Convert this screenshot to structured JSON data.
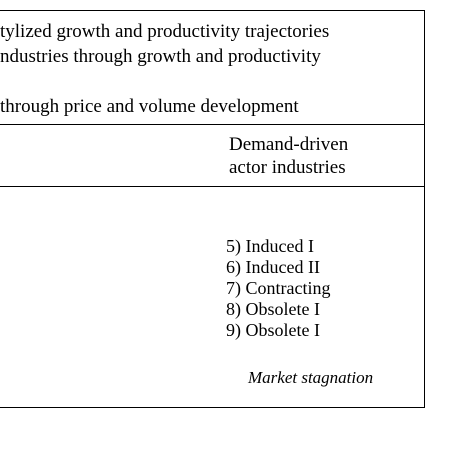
{
  "header": {
    "line1": "tylized growth and productivity trajectories",
    "line2": "ndustries through growth and productivity",
    "line3": " through price and volume development"
  },
  "column": {
    "heading_line1": "Demand-driven",
    "heading_line2": "actor industries"
  },
  "trajectories": [
    "5) Induced I",
    "6) Induced II",
    "7) Contracting",
    "8) Obsolete I",
    "9) Obsolete I"
  ],
  "footer_label": "Market stagnation"
}
